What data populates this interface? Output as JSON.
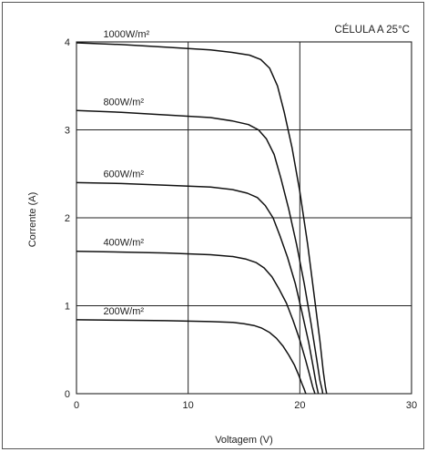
{
  "chart_data": {
    "type": "line",
    "title": "CÉLULA A 25°C",
    "xlabel": "Voltagem (V)",
    "ylabel": "Corrente (A)",
    "xlim": [
      0,
      30
    ],
    "ylim": [
      0,
      4
    ],
    "xticks": [
      "0",
      "10",
      "20",
      "30"
    ],
    "yticks": [
      "0",
      "1",
      "2",
      "3",
      "4"
    ],
    "grid": true,
    "series": [
      {
        "name": "1000W/m²",
        "x": [
          0,
          4,
          8,
          12,
          14,
          15.5,
          16.5,
          17.3,
          18.0,
          18.6,
          19.3,
          20.0,
          20.7,
          21.3,
          21.8,
          22.1,
          22.3,
          22.4
        ],
        "y": [
          3.99,
          3.97,
          3.94,
          3.91,
          3.88,
          3.85,
          3.8,
          3.7,
          3.5,
          3.2,
          2.8,
          2.3,
          1.7,
          1.1,
          0.6,
          0.25,
          0.07,
          0.0
        ]
      },
      {
        "name": "800W/m²",
        "x": [
          0,
          4,
          8,
          12,
          14,
          15.4,
          16.3,
          17.0,
          17.7,
          18.3,
          19.0,
          19.7,
          20.4,
          21.0,
          21.5,
          21.8,
          22.0,
          22.05
        ],
        "y": [
          3.22,
          3.2,
          3.17,
          3.14,
          3.1,
          3.06,
          3.0,
          2.9,
          2.72,
          2.45,
          2.1,
          1.7,
          1.25,
          0.8,
          0.4,
          0.15,
          0.04,
          0.0
        ]
      },
      {
        "name": "600W/m²",
        "x": [
          0,
          4,
          8,
          12,
          14,
          15.3,
          16.2,
          16.9,
          17.6,
          18.2,
          18.9,
          19.6,
          20.2,
          20.8,
          21.2,
          21.45,
          21.6,
          21.65
        ],
        "y": [
          2.4,
          2.39,
          2.37,
          2.35,
          2.32,
          2.28,
          2.23,
          2.14,
          2.0,
          1.8,
          1.55,
          1.25,
          0.92,
          0.58,
          0.3,
          0.12,
          0.03,
          0.0
        ]
      },
      {
        "name": "400W/m²",
        "x": [
          0,
          4,
          8,
          12,
          14,
          15.2,
          16.1,
          16.8,
          17.5,
          18.1,
          18.8,
          19.4,
          20.0,
          20.5,
          20.9,
          21.15,
          21.3,
          21.35
        ],
        "y": [
          1.62,
          1.61,
          1.6,
          1.58,
          1.56,
          1.53,
          1.49,
          1.43,
          1.33,
          1.2,
          1.03,
          0.83,
          0.61,
          0.39,
          0.2,
          0.08,
          0.02,
          0.0
        ]
      },
      {
        "name": "200W/m²",
        "x": [
          0,
          4,
          8,
          12,
          14,
          15.0,
          15.9,
          16.6,
          17.3,
          17.9,
          18.5,
          19.0,
          19.5,
          19.9,
          20.2,
          20.4,
          20.5,
          20.55
        ],
        "y": [
          0.84,
          0.835,
          0.83,
          0.82,
          0.81,
          0.795,
          0.775,
          0.745,
          0.695,
          0.63,
          0.54,
          0.44,
          0.33,
          0.21,
          0.11,
          0.05,
          0.01,
          0.0
        ]
      }
    ]
  }
}
